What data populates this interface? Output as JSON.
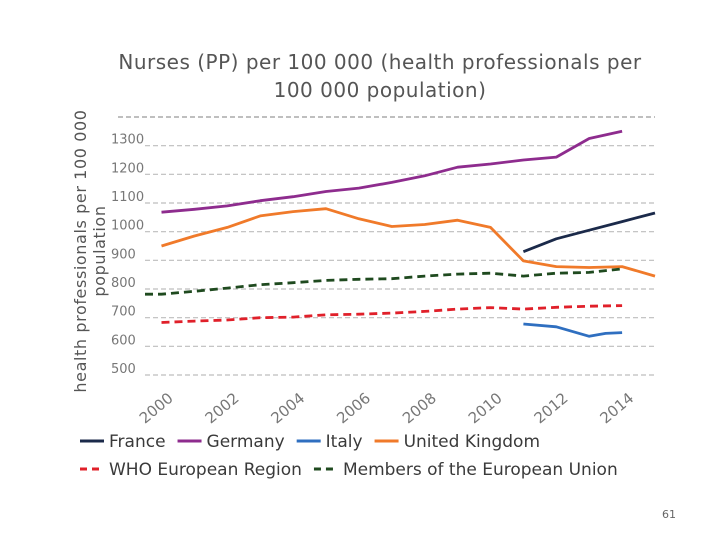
{
  "chart_data": {
    "type": "line",
    "title_line1": "Nurses (PP) per 100 000 (health professionals per",
    "title_line2": "100 000 population)",
    "xlabel": "",
    "ylabel": "health professionals per 100 000 population",
    "ylim": [
      500,
      1400
    ],
    "xlim": [
      1999.5,
      2015
    ],
    "y_ticks": [
      500,
      600,
      700,
      800,
      900,
      1000,
      1100,
      1200,
      1300
    ],
    "x_ticks": [
      2000,
      2002,
      2004,
      2006,
      2008,
      2010,
      2012,
      2014
    ],
    "grid": "horizontal-dashed",
    "series": [
      {
        "name": "France",
        "color": "#1b2a4a",
        "dash": "solid",
        "x": [
          2011,
          2012,
          2013,
          2014,
          2015
        ],
        "values": [
          930,
          975,
          1005,
          1035,
          1065
        ]
      },
      {
        "name": "Germany",
        "color": "#8e2c8e",
        "dash": "solid",
        "x": [
          2000,
          2001,
          2002,
          2003,
          2004,
          2005,
          2006,
          2007,
          2008,
          2009,
          2010,
          2011,
          2012,
          2013,
          2014
        ],
        "values": [
          1068,
          1078,
          1090,
          1108,
          1122,
          1140,
          1152,
          1172,
          1195,
          1225,
          1236,
          1250,
          1260,
          1325,
          1350
        ]
      },
      {
        "name": "Italy",
        "color": "#2f6fc0",
        "dash": "solid",
        "x": [
          2011,
          2012,
          2013,
          2013.5,
          2014
        ],
        "values": [
          678,
          668,
          635,
          645,
          648
        ]
      },
      {
        "name": "United Kingdom",
        "color": "#f07a2a",
        "dash": "solid",
        "x": [
          2000,
          2001,
          2002,
          2003,
          2004,
          2005,
          2006,
          2007,
          2008,
          2009,
          2010,
          2011,
          2012,
          2013,
          2014,
          2015
        ],
        "values": [
          950,
          985,
          1015,
          1055,
          1070,
          1080,
          1045,
          1018,
          1025,
          1040,
          1015,
          898,
          878,
          875,
          878,
          845
        ]
      },
      {
        "name": "WHO European Region",
        "color": "#e0202a",
        "dash": "dashed",
        "x": [
          2000,
          2001,
          2002,
          2003,
          2004,
          2005,
          2006,
          2007,
          2008,
          2009,
          2010,
          2011,
          2012,
          2013,
          2014
        ],
        "values": [
          683,
          688,
          692,
          700,
          702,
          710,
          712,
          716,
          722,
          730,
          735,
          730,
          736,
          740,
          742
        ]
      },
      {
        "name": "Members of the European Union",
        "color": "#1f4a1f",
        "dash": "dashed",
        "x": [
          1999.5,
          2000,
          2001,
          2002,
          2003,
          2004,
          2005,
          2006,
          2007,
          2008,
          2009,
          2010,
          2011,
          2012,
          2013,
          2014
        ],
        "values": [
          782,
          782,
          792,
          803,
          815,
          822,
          830,
          834,
          836,
          845,
          852,
          855,
          845,
          855,
          858,
          870
        ]
      }
    ]
  },
  "page_number": "61"
}
